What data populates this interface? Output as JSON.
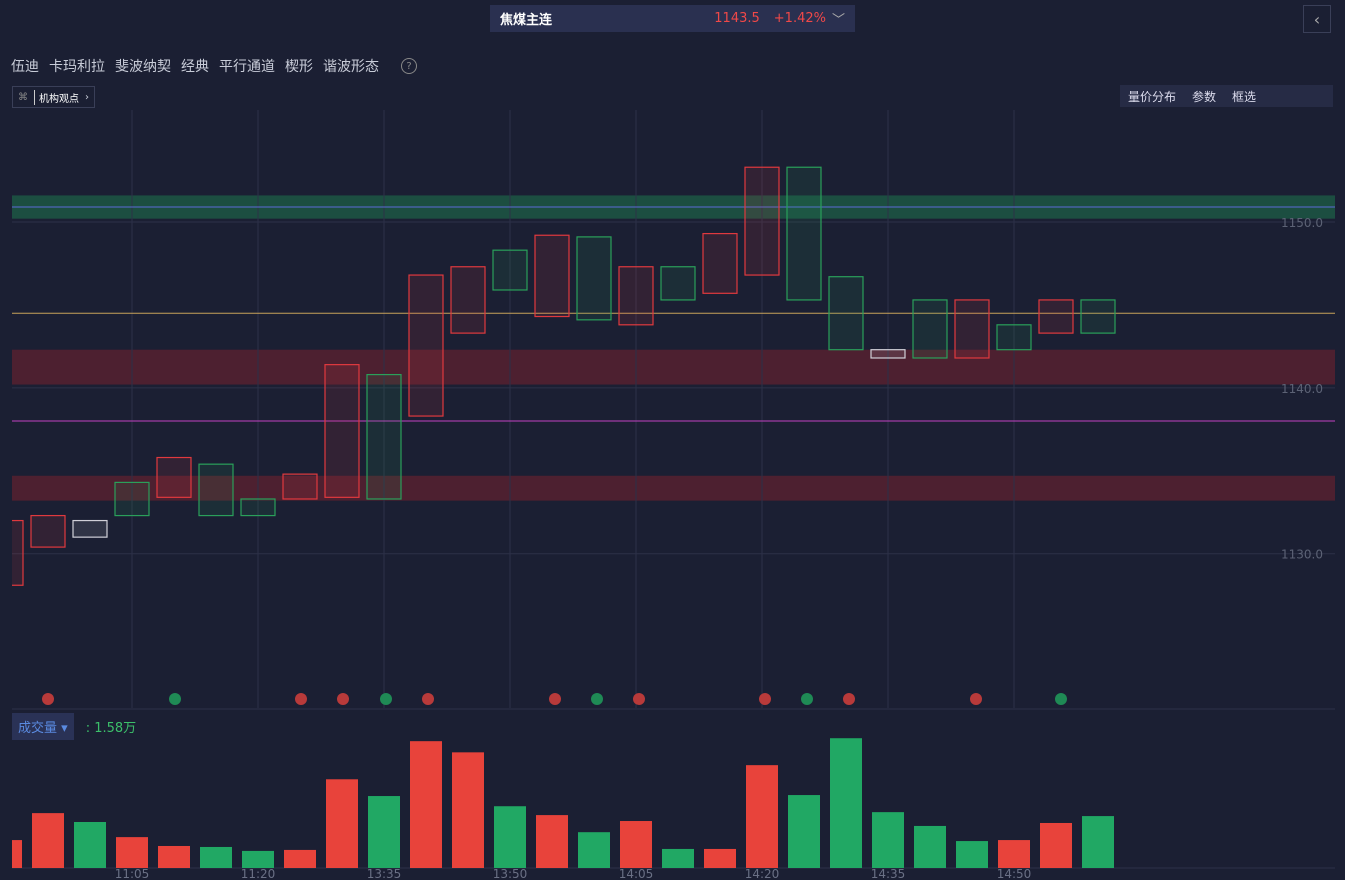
{
  "header": {
    "title": "焦煤主连",
    "price": "1143.5",
    "change": "+1.42%"
  },
  "toolbar": {
    "tabs": [
      "伍迪",
      "卡玛利拉",
      "斐波纳契",
      "经典",
      "平行通道",
      "楔形",
      "谐波形态"
    ],
    "help": "?"
  },
  "sub_toolbar": {
    "label": "机构观点",
    "right": [
      "量价分布",
      "参数",
      "框选"
    ]
  },
  "chart_data": [
    {
      "type": "candlestick",
      "categories": [
        null,
        null,
        null,
        "11:05",
        null,
        null,
        "11:20",
        null,
        null,
        "13:35",
        null,
        null,
        "13:50",
        null,
        null,
        "14:05",
        null,
        null,
        "14:20",
        null,
        null,
        "14:35",
        null,
        null,
        "14:50",
        null,
        null
      ],
      "open": [
        1128.1,
        1130.4,
        1132.0,
        1134.3,
        1133.4,
        1135.4,
        1133.3,
        1133.3,
        1133.4,
        1140.8,
        1138.3,
        1143.3,
        1148.3,
        1144.3,
        1149.1,
        1143.8,
        1147.3,
        1145.7,
        1146.8,
        1153.3,
        1146.7,
        1142.3,
        1145.3,
        1141.8,
        1143.8,
        1143.3,
        1145.3
      ],
      "close": [
        1132.0,
        1132.3,
        1131.0,
        1132.3,
        1135.8,
        1132.3,
        1132.3,
        1134.8,
        1141.4,
        1133.3,
        1146.8,
        1147.3,
        1145.9,
        1149.2,
        1144.1,
        1147.3,
        1145.3,
        1149.3,
        1153.3,
        1145.3,
        1142.3,
        1141.8,
        1141.8,
        1145.3,
        1142.3,
        1145.3,
        1143.3
      ],
      "colors": [
        "#e0393e",
        "#e0393e",
        "#d0d0d8",
        "#2aa05a",
        "#e0393e",
        "#2aa05a",
        "#2aa05a",
        "#e0393e",
        "#e0393e",
        "#2aa05a",
        "#e0393e",
        "#e0393e",
        "#2aa05a",
        "#e0393e",
        "#2aa05a",
        "#e0393e",
        "#2aa05a",
        "#e0393e",
        "#e0393e",
        "#2aa05a",
        "#2aa05a",
        "#d0d0d8",
        "#2aa05a",
        "#e0393e",
        "#2aa05a",
        "#e0393e",
        "#2aa05a"
      ],
      "ylim": [
        1120.7,
        1156.75
      ],
      "yticks": [
        {
          "value": 1150,
          "label": "1150.0"
        },
        {
          "value": 1140,
          "label": "1140.0"
        },
        {
          "value": 1130,
          "label": "1130.0"
        }
      ],
      "lines": [
        {
          "price": 1150.9,
          "color": "#5b6bd6"
        },
        {
          "price": 1144.5,
          "color": "#c8a25a"
        },
        {
          "price": 1138.0,
          "color": "#c040c0"
        }
      ],
      "zones": [
        {
          "from": 1150.2,
          "to": 1151.6,
          "color": "#1d5a45"
        },
        {
          "from": 1140.2,
          "to": 1142.3,
          "color": "#5a2030"
        },
        {
          "from": 1133.2,
          "to": 1134.7,
          "color": "#5a2030"
        }
      ]
    },
    {
      "type": "bar",
      "title": "成交量",
      "latest_label": ": 1.58万",
      "values": [
        0.85,
        1.67,
        1.4,
        0.94,
        0.67,
        0.64,
        0.52,
        0.55,
        2.7,
        2.19,
        3.86,
        3.52,
        1.88,
        1.61,
        1.09,
        1.43,
        0.58,
        0.58,
        3.13,
        2.22,
        3.95,
        1.7,
        1.28,
        0.82,
        0.85,
        1.37,
        1.58
      ],
      "colors": [
        "#e8433b",
        "#e8433b",
        "#21a864",
        "#e8433b",
        "#e8433b",
        "#21a864",
        "#21a864",
        "#e8433b",
        "#e8433b",
        "#21a864",
        "#e8433b",
        "#e8433b",
        "#21a864",
        "#e8433b",
        "#21a864",
        "#e8433b",
        "#21a864",
        "#e8433b",
        "#e8433b",
        "#21a864",
        "#21a864",
        "#21a864",
        "#21a864",
        "#21a864",
        "#e8433b",
        "#e8433b",
        "#21a864"
      ],
      "ylim": [
        0,
        4.2
      ]
    }
  ]
}
